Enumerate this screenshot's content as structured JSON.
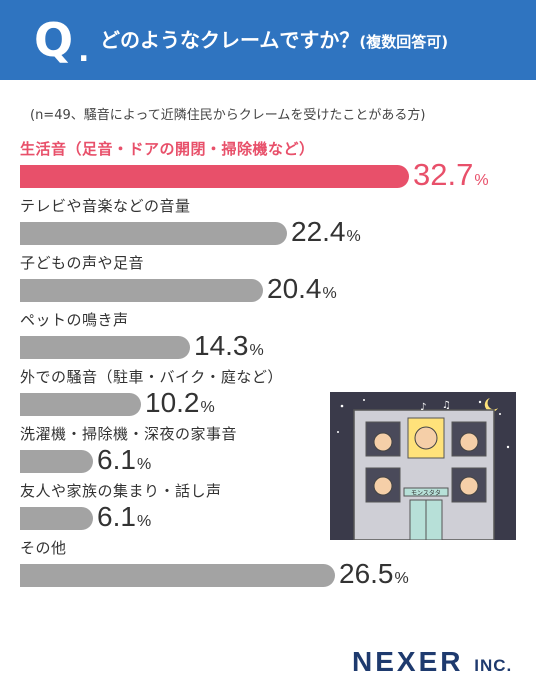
{
  "header": {
    "q": "Q",
    "q_dot": ".",
    "question": "どのようなクレームですか？",
    "sub": "(複数回答可)"
  },
  "note": "(n=49、騒音によって近隣住民からクレームを受けたことがある方)",
  "chart_data": {
    "type": "bar",
    "orientation": "horizontal",
    "categories": [
      "生活音（足音・ドアの開閉・掃除機など）",
      "テレビや音楽などの音量",
      "子どもの声や足音",
      "ペットの鳴き声",
      "外での騒音（駐車・バイク・庭など）",
      "洗濯機・掃除機・深夜の家事音",
      "友人や家族の集まり・話し声",
      "その他"
    ],
    "values": [
      32.7,
      22.4,
      20.4,
      14.3,
      10.2,
      6.1,
      6.1,
      26.5
    ],
    "value_labels": [
      "32.7",
      "22.4",
      "20.4",
      "14.3",
      "10.2",
      "6.1",
      "6.1",
      "26.5"
    ],
    "unit": "%",
    "highlight_index": 0,
    "colors": {
      "bar": "#a3a3a3",
      "highlight": "#e8506a"
    }
  },
  "illustration": {
    "sign": "モンスタタ"
  },
  "logo": {
    "name": "NEXER",
    "suffix": "INC."
  }
}
